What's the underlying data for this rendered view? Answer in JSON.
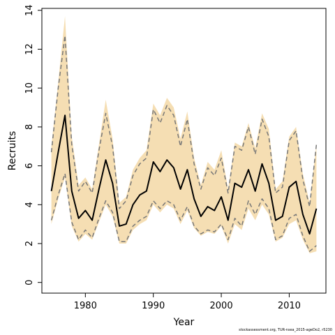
{
  "chart_data": {
    "type": "line",
    "xlabel": "Year",
    "ylabel": "Recruits",
    "xlim": [
      1973.6,
      2015.4
    ],
    "ylim": [
      -0.55,
      14.1
    ],
    "xticks": [
      1980,
      1990,
      2000,
      2010
    ],
    "yticks": [
      0,
      2,
      4,
      6,
      8,
      10,
      12,
      14
    ],
    "x": [
      1975,
      1976,
      1977,
      1978,
      1979,
      1980,
      1981,
      1982,
      1983,
      1984,
      1985,
      1986,
      1987,
      1988,
      1989,
      1990,
      1991,
      1992,
      1993,
      1994,
      1995,
      1996,
      1997,
      1998,
      1999,
      2000,
      2001,
      2002,
      2003,
      2004,
      2005,
      2006,
      2007,
      2008,
      2009,
      2010,
      2011,
      2012,
      2013,
      2014
    ],
    "series": [
      {
        "role": "estimate",
        "color": "#000000",
        "style": "solid",
        "values": [
          4.7,
          6.7,
          8.6,
          4.7,
          3.3,
          3.7,
          3.2,
          4.8,
          6.3,
          5.1,
          2.9,
          3.0,
          4.0,
          4.5,
          4.7,
          6.2,
          5.7,
          6.3,
          5.9,
          4.8,
          5.8,
          4.3,
          3.4,
          3.9,
          3.7,
          4.4,
          3.2,
          5.1,
          4.9,
          5.8,
          4.7,
          6.1,
          5.1,
          3.2,
          3.4,
          4.9,
          5.2,
          3.5,
          2.5,
          3.8
        ]
      },
      {
        "role": "interval-upper",
        "color": "#777777",
        "style": "dashed",
        "values": [
          6.7,
          10.0,
          12.7,
          7.1,
          4.7,
          5.2,
          4.6,
          6.8,
          8.7,
          7.0,
          3.8,
          4.2,
          5.5,
          6.1,
          6.4,
          8.9,
          8.2,
          9.1,
          8.6,
          7.0,
          8.4,
          6.1,
          4.8,
          5.9,
          5.5,
          6.4,
          4.6,
          7.0,
          6.8,
          8.0,
          6.6,
          8.4,
          7.5,
          4.6,
          4.9,
          7.3,
          7.8,
          5.3,
          3.9,
          7.1
        ]
      },
      {
        "role": "interval-lower",
        "color": "#777777",
        "style": "dashed",
        "values": [
          3.2,
          4.5,
          5.6,
          3.1,
          2.2,
          2.7,
          2.3,
          3.3,
          4.2,
          3.6,
          2.1,
          2.1,
          2.9,
          3.2,
          3.4,
          4.2,
          3.8,
          4.2,
          4.0,
          3.2,
          3.9,
          2.9,
          2.5,
          2.7,
          2.6,
          3.0,
          2.2,
          3.3,
          2.9,
          4.2,
          3.5,
          4.3,
          3.8,
          2.2,
          2.4,
          3.3,
          3.5,
          2.4,
          1.6,
          1.9
        ]
      }
    ],
    "band": {
      "color": "#f5deb3",
      "upper": [
        7.0,
        10.3,
        13.7,
        7.5,
        5.0,
        5.4,
        4.8,
        7.1,
        9.4,
        7.4,
        4.1,
        4.4,
        5.8,
        6.4,
        6.8,
        9.2,
        8.6,
        9.5,
        9.0,
        7.4,
        8.8,
        6.4,
        5.0,
        6.2,
        5.8,
        6.8,
        4.8,
        7.2,
        7.0,
        8.2,
        6.9,
        8.7,
        7.9,
        4.8,
        5.2,
        7.5,
        8.0,
        5.6,
        4.1,
        7.1
      ],
      "lower": [
        3.0,
        4.3,
        5.4,
        2.9,
        2.1,
        2.5,
        2.2,
        3.1,
        4.0,
        3.4,
        2.0,
        2.0,
        2.7,
        3.0,
        3.2,
        4.0,
        3.6,
        4.0,
        3.8,
        3.0,
        3.7,
        2.8,
        2.4,
        2.6,
        2.5,
        2.9,
        2.0,
        3.0,
        2.7,
        3.8,
        3.2,
        4.0,
        3.5,
        2.1,
        2.3,
        3.0,
        3.2,
        2.2,
        1.5,
        1.6
      ]
    },
    "grid": false
  },
  "footer_note": "stockassessment.org, TUR-nsea_2015-ageDo2, r5230"
}
